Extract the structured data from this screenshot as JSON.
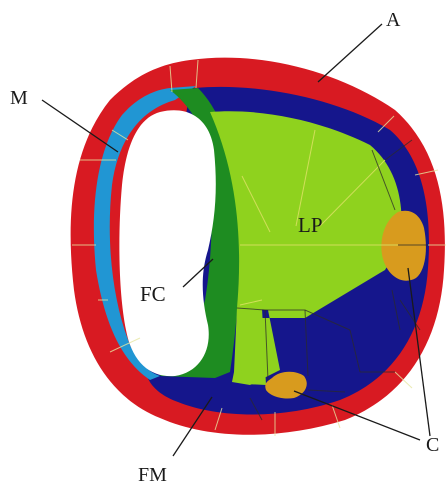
{
  "labels": {
    "a": "A",
    "m": "M",
    "lp": "LP",
    "fc": "FC",
    "fm": "FM",
    "c": "C"
  },
  "colors": {
    "outer_ring": "#d81a22",
    "m_region": "#2196d3",
    "fc_region": "#1e8c21",
    "lp_region": "#8fd21e",
    "fm_region": "#15168c",
    "c_region": "#d89b1e",
    "lumen": "#ffffff"
  }
}
